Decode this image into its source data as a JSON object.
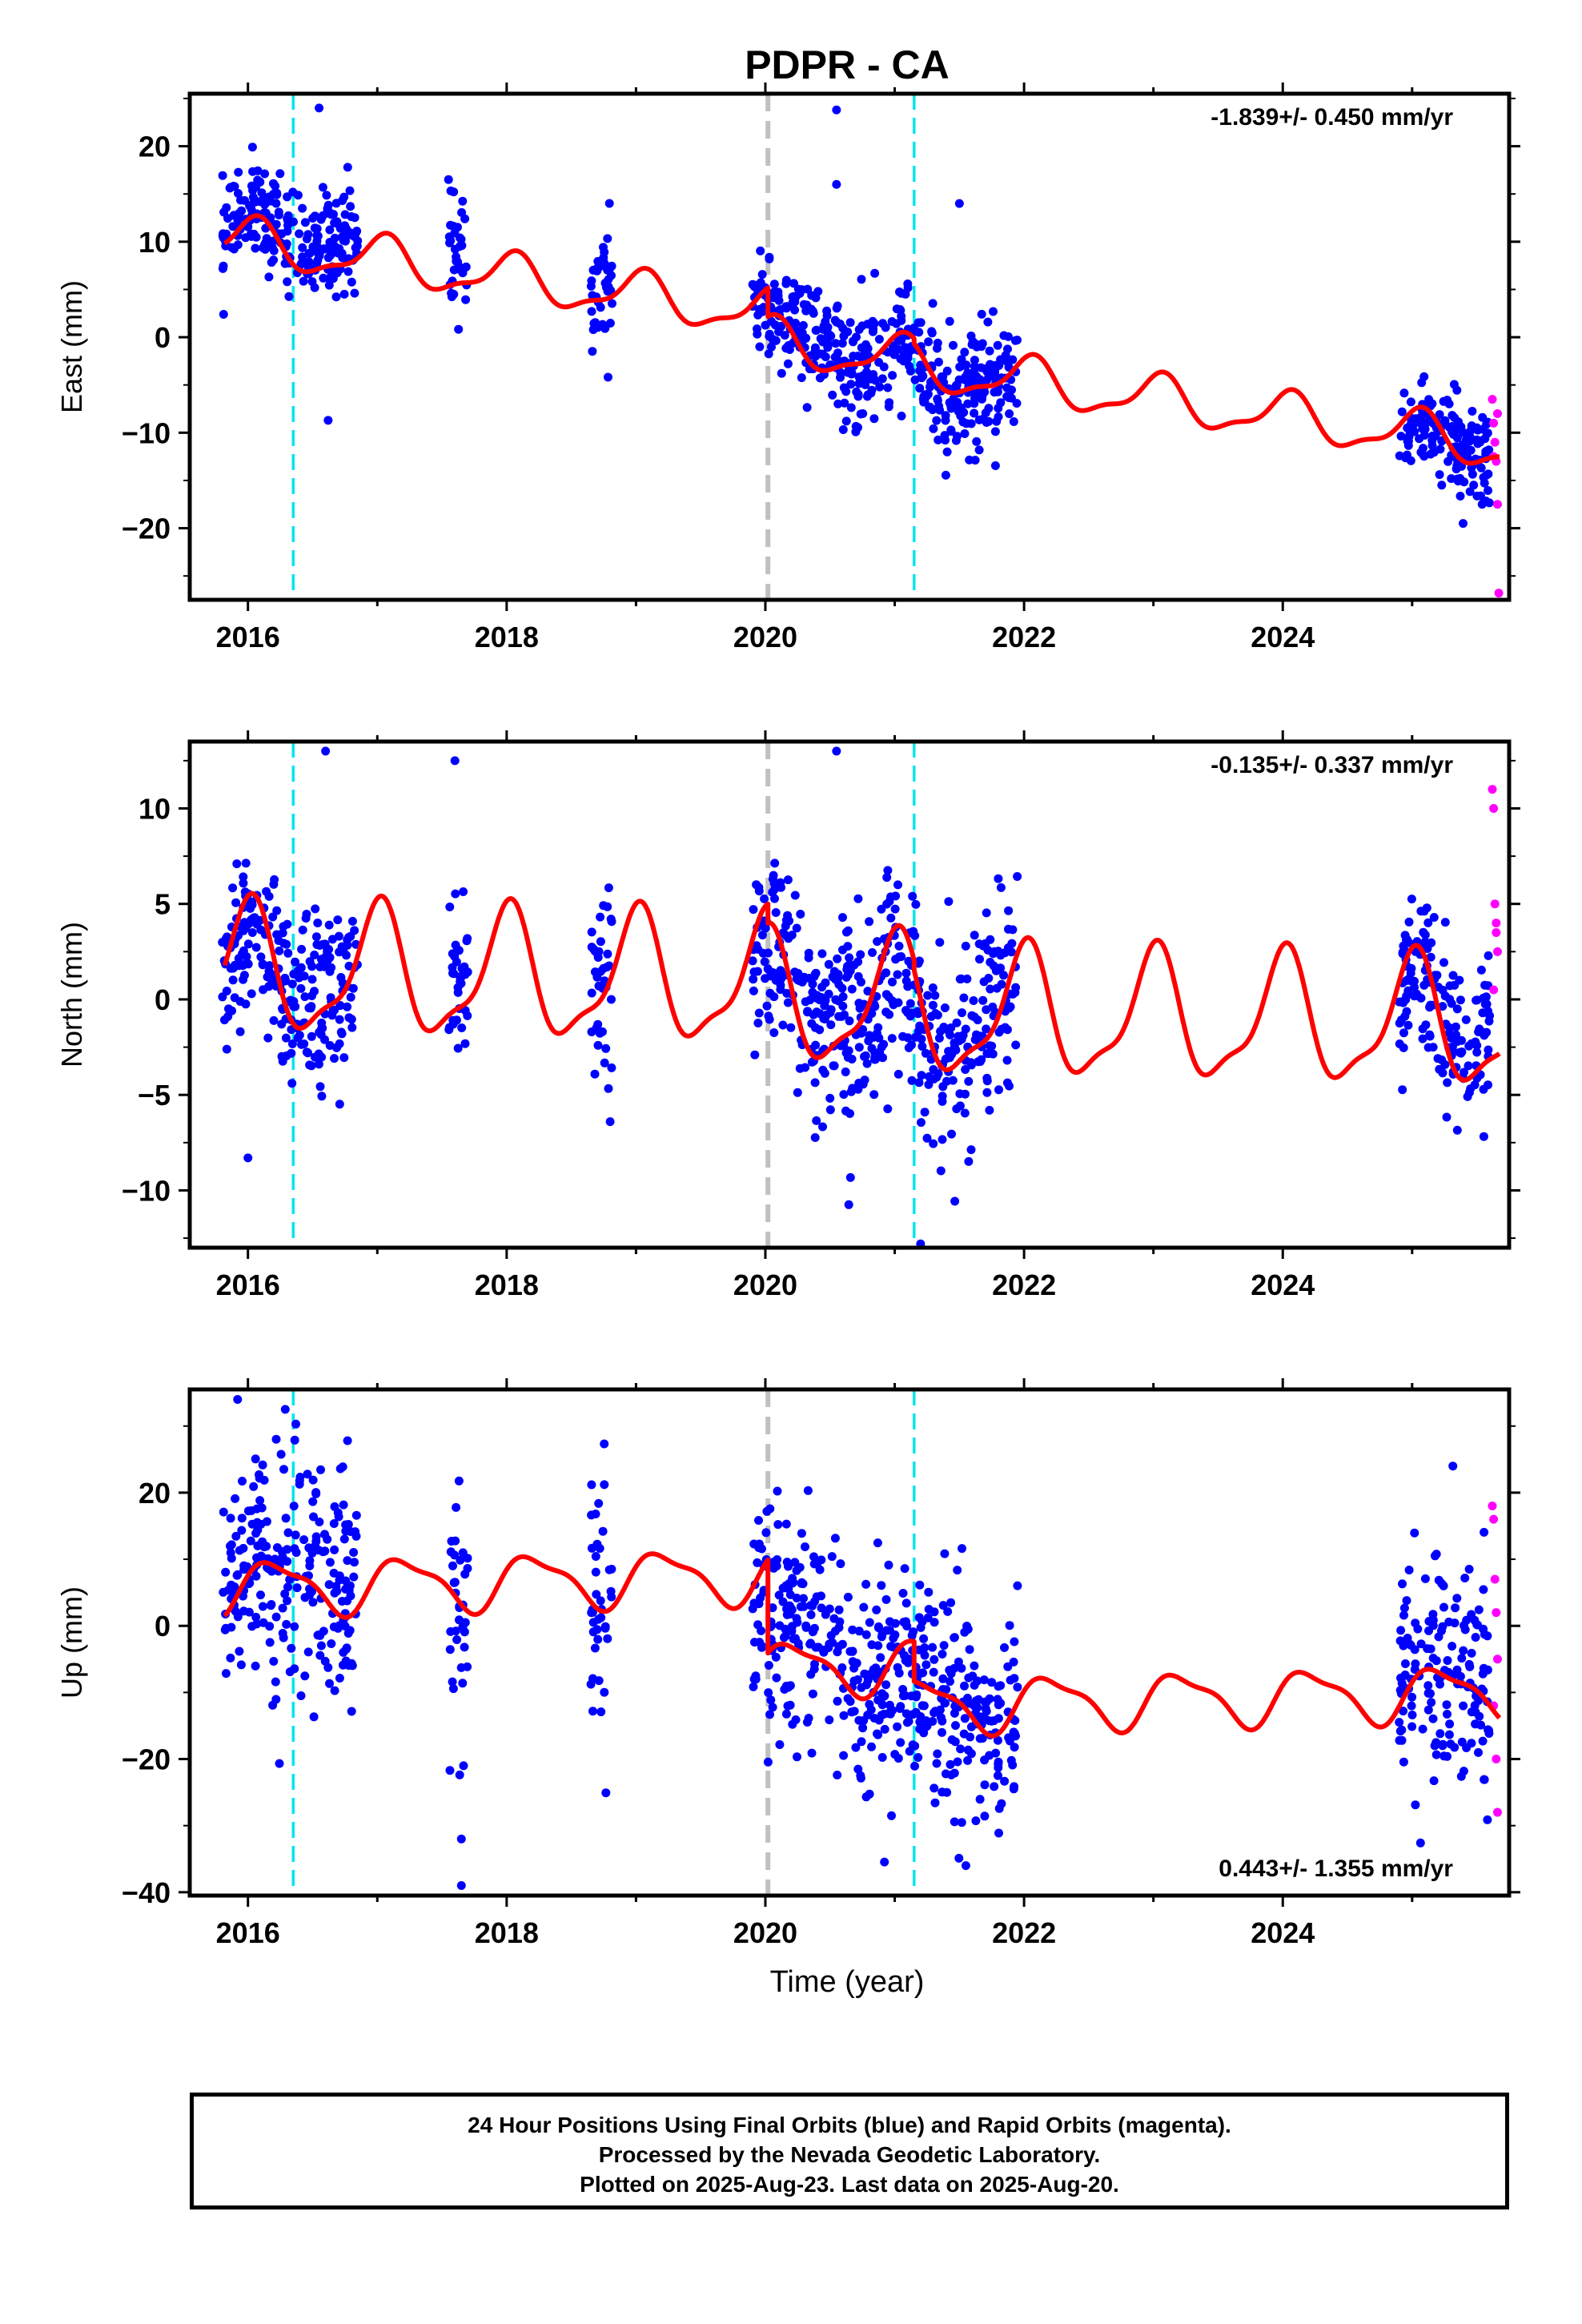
{
  "title": "PDPR - CA",
  "colors": {
    "final_orbits": "#0000ff",
    "rapid_orbits": "#ff00ff",
    "model": "#ff0000",
    "equipment_change": "#00e5ee",
    "earthquake_offset": "#c0c0c0",
    "frame": "#000000"
  },
  "xlabel": "Time (year)",
  "footer": {
    "line1": "24 Hour Positions Using Final Orbits (blue) and Rapid Orbits (magenta).",
    "line2": "Processed by the Nevada Geodetic Laboratory.",
    "line3": "Plotted on 2025-Aug-23. Last data on 2025-Aug-20."
  },
  "chart_data": [
    {
      "type": "scatter",
      "panel": "east",
      "ylabel": "East (mm)",
      "rate_label": "-1.839+/- 0.450 mm/yr",
      "rate_position": "top-right",
      "xlim": [
        2015.55,
        2025.75
      ],
      "ylim": [
        -27.5,
        25.5
      ],
      "x_ticks": [
        "2016",
        "2018",
        "2020",
        "2022",
        "2024"
      ],
      "y_ticks": [
        "20",
        "10",
        "0",
        "-10",
        "-20"
      ],
      "equipment_change_lines": [
        2016.35,
        2021.15
      ],
      "offset_lines": [
        2020.02
      ],
      "data_segments": [
        {
          "start": 2015.8,
          "end": 2016.85,
          "center": 13.5,
          "spread": 2.6
        },
        {
          "start": 2017.55,
          "end": 2017.7,
          "center": 12.0,
          "spread": 3.0
        },
        {
          "start": 2018.65,
          "end": 2018.82,
          "center": 4.5,
          "spread": 3.5
        },
        {
          "start": 2019.9,
          "end": 2020.6,
          "center": 2.5,
          "spread": 2.5
        },
        {
          "start": 2020.6,
          "end": 2021.95,
          "center": -5.0,
          "spread": 3.2
        },
        {
          "start": 2024.9,
          "end": 2025.6,
          "center": -11.0,
          "spread": 2.6
        }
      ],
      "rapid_points": [
        [
          2025.62,
          -6.5
        ],
        [
          2025.63,
          -9.0
        ],
        [
          2025.64,
          -11.0
        ],
        [
          2025.65,
          -13.0
        ],
        [
          2025.66,
          -17.5
        ],
        [
          2025.67,
          -26.8
        ],
        [
          2025.63,
          -12.5
        ],
        [
          2025.66,
          -8.0
        ]
      ],
      "outliers": [
        [
          2016.55,
          24.0
        ],
        [
          2016.62,
          -8.7
        ],
        [
          2020.55,
          23.8
        ],
        [
          2020.55,
          16.0
        ],
        [
          2021.5,
          14.0
        ]
      ],
      "model": {
        "intercept_2020": 2.5,
        "rate": -1.839,
        "annual_amplitude": 2.3,
        "annual_phase": 1.3,
        "semiannual_amplitude": 0.8,
        "semiannual_phase": 0.3,
        "steps": [
          {
            "x": 2020.02,
            "value": -3.0
          },
          {
            "x": 2021.15,
            "value": -0.5
          }
        ]
      }
    },
    {
      "type": "scatter",
      "panel": "north",
      "ylabel": "North (mm)",
      "rate_label": "-0.135+/- 0.337 mm/yr",
      "rate_position": "top-right",
      "xlim": [
        2015.55,
        2025.75
      ],
      "ylim": [
        -13.0,
        13.5
      ],
      "x_ticks": [
        "2016",
        "2018",
        "2020",
        "2022",
        "2024"
      ],
      "y_ticks": [
        "10",
        "5",
        "0",
        "-5",
        "-10"
      ],
      "equipment_change_lines": [
        2016.35,
        2021.15
      ],
      "offset_lines": [
        2020.02
      ],
      "data_segments": [
        {
          "start": 2015.8,
          "end": 2016.85,
          "center": 0.5,
          "spread": 2.2
        },
        {
          "start": 2017.55,
          "end": 2017.7,
          "center": 4.0,
          "spread": 2.5
        },
        {
          "start": 2018.65,
          "end": 2018.82,
          "center": 1.5,
          "spread": 2.2
        },
        {
          "start": 2019.9,
          "end": 2020.6,
          "center": 1.0,
          "spread": 2.3
        },
        {
          "start": 2020.6,
          "end": 2021.95,
          "center": -1.0,
          "spread": 2.8
        },
        {
          "start": 2024.9,
          "end": 2025.6,
          "center": -0.5,
          "spread": 2.2
        }
      ],
      "rapid_points": [
        [
          2025.62,
          11.0
        ],
        [
          2025.63,
          10.0
        ],
        [
          2025.64,
          5.0
        ],
        [
          2025.65,
          4.0
        ],
        [
          2025.66,
          2.5
        ],
        [
          2025.63,
          0.5
        ],
        [
          2025.65,
          3.5
        ]
      ],
      "outliers": [
        [
          2016.6,
          13.0
        ],
        [
          2017.6,
          12.5
        ],
        [
          2016.0,
          -8.3
        ],
        [
          2018.8,
          -6.4
        ],
        [
          2020.55,
          13.0
        ],
        [
          2021.2,
          -12.8
        ]
      ],
      "model": {
        "intercept_2020": 0.9,
        "rate": -0.135,
        "annual_amplitude": 3.2,
        "annual_phase": 1.55,
        "semiannual_amplitude": 1.0,
        "semiannual_phase": 0.9,
        "steps": [
          {
            "x": 2020.02,
            "value": -1.0
          },
          {
            "x": 2021.15,
            "value": -0.5
          }
        ]
      }
    },
    {
      "type": "scatter",
      "panel": "up",
      "ylabel": "Up (mm)",
      "rate_label": "0.443+/- 1.355 mm/yr",
      "rate_position": "bottom-right",
      "xlim": [
        2015.55,
        2025.75
      ],
      "ylim": [
        -40.5,
        35.5
      ],
      "x_ticks": [
        "2016",
        "2018",
        "2020",
        "2022",
        "2024"
      ],
      "y_ticks": [
        "20",
        "0",
        "-20",
        "-40"
      ],
      "equipment_change_lines": [
        2016.35,
        2021.15
      ],
      "offset_lines": [
        2020.02
      ],
      "data_segments": [
        {
          "start": 2015.8,
          "end": 2016.85,
          "center": 7.0,
          "spread": 9.5
        },
        {
          "start": 2017.55,
          "end": 2017.7,
          "center": -5.0,
          "spread": 12.0
        },
        {
          "start": 2018.65,
          "end": 2018.82,
          "center": 8.0,
          "spread": 9.0
        },
        {
          "start": 2019.9,
          "end": 2020.6,
          "center": 6.0,
          "spread": 8.0
        },
        {
          "start": 2020.6,
          "end": 2021.95,
          "center": -10.0,
          "spread": 8.0
        },
        {
          "start": 2024.9,
          "end": 2025.6,
          "center": -8.0,
          "spread": 9.0
        }
      ],
      "rapid_points": [
        [
          2025.62,
          18.0
        ],
        [
          2025.63,
          16.0
        ],
        [
          2025.64,
          7.0
        ],
        [
          2025.65,
          2.0
        ],
        [
          2025.66,
          -5.0
        ],
        [
          2025.63,
          -12.0
        ],
        [
          2025.65,
          -20.0
        ],
        [
          2025.66,
          -28.0
        ]
      ],
      "outliers": [
        [
          2015.92,
          34.0
        ],
        [
          2017.65,
          -39.0
        ],
        [
          2017.65,
          -32.0
        ],
        [
          2021.55,
          -36.0
        ]
      ],
      "model": {
        "intercept_2020": 7.5,
        "rate": 0.443,
        "annual_amplitude": 3.8,
        "annual_phase": 0.2,
        "semiannual_amplitude": 1.2,
        "semiannual_phase": 1.1,
        "steps": [
          {
            "x": 2020.02,
            "value": -14.0
          },
          {
            "x": 2021.15,
            "value": -6.0
          }
        ]
      }
    }
  ]
}
